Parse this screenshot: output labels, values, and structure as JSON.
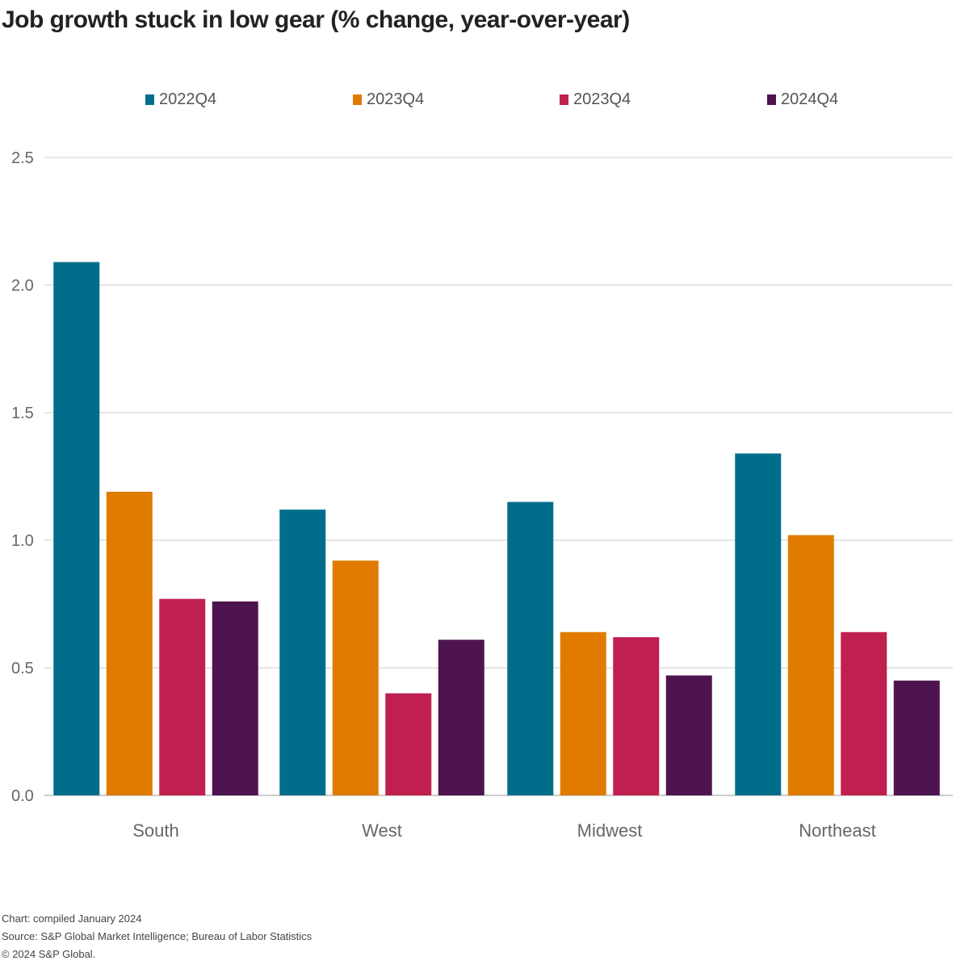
{
  "title": "Job growth stuck in low gear (% change, year-over-year)",
  "footer": {
    "line1": "Chart: compiled January 2024",
    "line2": "Source: S&P Global Market Intelligence; Bureau of Labor Statistics",
    "line3": "© 2024 S&P Global."
  },
  "colors": {
    "series1": "#006e8a",
    "series2": "#e07b00",
    "series3": "#c02050",
    "series4": "#4e1450",
    "grid": "#e6e6e6",
    "tick": "#666666"
  },
  "chart_data": {
    "type": "bar",
    "title": "Job growth stuck in low gear (% change, year-over-year)",
    "xlabel": "",
    "ylabel": "",
    "categories": [
      "South",
      "West",
      "Midwest",
      "Northeast"
    ],
    "series": [
      {
        "name": "2022Q4",
        "values": [
          2.09,
          1.12,
          1.15,
          1.34
        ]
      },
      {
        "name": "2023Q4",
        "values": [
          1.19,
          0.92,
          0.64,
          1.02
        ]
      },
      {
        "name": "2023Q4",
        "values": [
          0.77,
          0.4,
          0.62,
          0.64
        ]
      },
      {
        "name": "2024Q4",
        "values": [
          0.76,
          0.61,
          0.47,
          0.45
        ]
      }
    ],
    "ylim": [
      0,
      2.5
    ],
    "yticks": [
      "0.0",
      "0.5",
      "1.0",
      "1.5",
      "2.0",
      "2.5"
    ],
    "grid": true,
    "legend_position": "top"
  }
}
